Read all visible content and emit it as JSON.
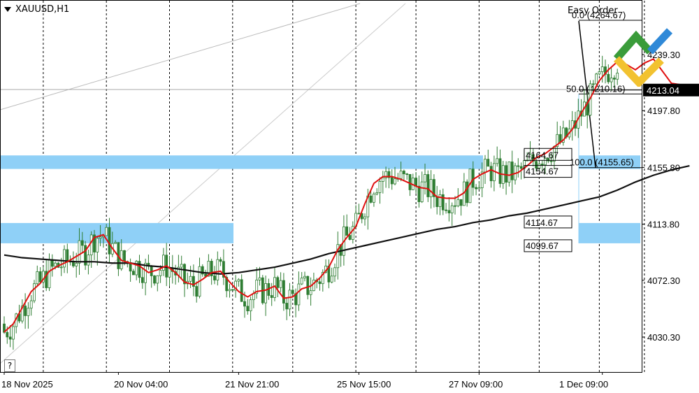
{
  "symbol": "XAUUSD,H1",
  "easy_order": "Easy Order",
  "help_label": "?",
  "current_price": "4213.04",
  "colors": {
    "bull": "#2e7d32",
    "bear": "#2e7d32",
    "ema_fast": "#e01010",
    "ma_slow": "#111111",
    "zone": "#8fd0f7",
    "price_box": "#000000"
  },
  "icon_names": [
    "menu-triangle-icon",
    "help-icon",
    "brand-logo-icon"
  ],
  "zones": [
    {
      "name": "zone-top",
      "from": 4154.67,
      "to": 4164.67,
      "label_top": "4164.67",
      "label_bottom": "4154.67"
    },
    {
      "name": "zone-bottom",
      "from": 4099.67,
      "to": 4114.67,
      "label_top": "4114.67",
      "label_bottom": "4099.67"
    }
  ],
  "fib_labels": [
    "0.0 (4264.67)",
    "50.0 (4210.16)",
    "100.0 (4155.65)"
  ],
  "chart_data": {
    "type": "candlestick",
    "title": "XAUUSD,H1",
    "ylim": [
      4000,
      4290
    ],
    "grid": true,
    "y_ticks": [
      "4030.30",
      "4072.30",
      "4113.80",
      "4155.80",
      "4197.80",
      "4239.30"
    ],
    "x_ticks": [
      "18 Nov 2025",
      "20 Nov 04:00",
      "21 Nov 21:00",
      "25 Nov 15:00",
      "27 Nov 09:00",
      "1 Dec 09:00"
    ],
    "x_tick_index": [
      0,
      38,
      78,
      118,
      158,
      199
    ],
    "vertical_gridlines_index": [
      13,
      34,
      55,
      76,
      96,
      117,
      137,
      158,
      178,
      198,
      213
    ],
    "series": [
      {
        "name": "",
        "kind": "ema_fast",
        "values": [
          4034,
          4040,
          4052,
          4064,
          4070,
          4079,
          4083,
          4086,
          4090,
          4094,
          4104,
          4106,
          4096,
          4087,
          4085,
          4083,
          4078,
          4080,
          4083,
          4078,
          4071,
          4069,
          4073,
          4078,
          4079,
          4071,
          4064,
          4060,
          4064,
          4065,
          4068,
          4059,
          4060,
          4066,
          4068,
          4074,
          4082,
          4095,
          4104,
          4112,
          4129,
          4144,
          4149,
          4149,
          4147,
          4144,
          4141,
          4140,
          4134,
          4133,
          4133,
          4137,
          4147,
          4151,
          4154,
          4151,
          4150,
          4152,
          4157,
          4163,
          4166,
          4171,
          4176,
          4184,
          4196,
          4207,
          4220,
          4228,
          4234,
          4232,
          4228,
          4233,
          4236,
          4227,
          4218,
          4217,
          4213
        ]
      },
      {
        "name": "",
        "kind": "ma_slow",
        "values": [
          4091,
          4089,
          4088,
          4087,
          4086,
          4086,
          4085,
          4085,
          4083,
          4082,
          4080,
          4078,
          4077,
          4078,
          4080,
          4082,
          4085,
          4088,
          4092,
          4095,
          4098,
          4101,
          4104,
          4107,
          4110,
          4112,
          4115,
          4117,
          4120,
          4122,
          4125,
          4128,
          4131,
          4134,
          4139,
          4145,
          4150,
          4154,
          4157
        ]
      }
    ],
    "ema_x_step": 3,
    "ma_x_step": 6,
    "price_line": 4213.04,
    "candles": "generated"
  }
}
